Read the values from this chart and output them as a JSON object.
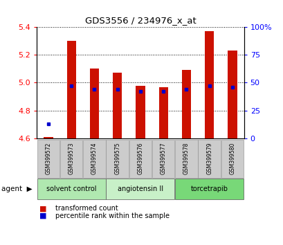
{
  "title": "GDS3556 / 234976_x_at",
  "samples": [
    "GSM399572",
    "GSM399573",
    "GSM399574",
    "GSM399575",
    "GSM399576",
    "GSM399577",
    "GSM399578",
    "GSM399579",
    "GSM399580"
  ],
  "transformed_count": [
    4.61,
    5.3,
    5.1,
    5.07,
    4.98,
    4.97,
    5.09,
    5.37,
    5.23
  ],
  "percentile_rank": [
    13,
    47,
    44,
    44,
    42,
    42,
    44,
    47,
    46
  ],
  "ylim_left": [
    4.6,
    5.4
  ],
  "ylim_right": [
    0,
    100
  ],
  "yticks_left": [
    4.6,
    4.8,
    5.0,
    5.2,
    5.4
  ],
  "yticks_right": [
    0,
    25,
    50,
    75,
    100
  ],
  "groups": [
    {
      "label": "solvent control",
      "indices": [
        0,
        1,
        2
      ],
      "color": "#b0e8b0"
    },
    {
      "label": "angiotensin II",
      "indices": [
        3,
        4,
        5
      ],
      "color": "#c8f0c8"
    },
    {
      "label": "torcetrapib",
      "indices": [
        6,
        7,
        8
      ],
      "color": "#78d878"
    }
  ],
  "bar_color": "#cc1100",
  "dot_color": "#0000cc",
  "bar_width": 0.4,
  "base_value": 4.6,
  "sample_box_color": "#cccccc",
  "legend": [
    {
      "label": "transformed count",
      "color": "#cc1100"
    },
    {
      "label": "percentile rank within the sample",
      "color": "#0000cc"
    }
  ]
}
